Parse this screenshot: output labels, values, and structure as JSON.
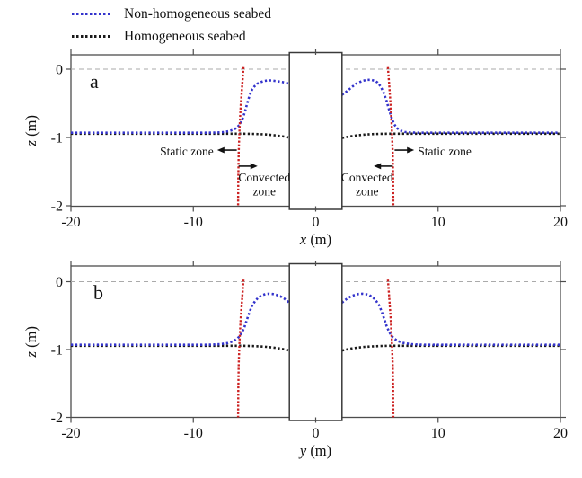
{
  "legend": {
    "items": [
      {
        "label": "Non-homogeneous seabed",
        "color": "#3333cc",
        "style": "dotted"
      },
      {
        "label": "Homogeneous seabed",
        "color": "#1a1a1a",
        "style": "dotted"
      }
    ]
  },
  "colors": {
    "non_homogeneous": "#3333cc",
    "homogeneous": "#1a1a1a",
    "slip_surface": "#cc2222",
    "zero_gridline": "#aaaaaa",
    "frame": "#4d4d4d",
    "text": "#111111"
  },
  "chart_data": [
    {
      "panel": "a",
      "type": "line",
      "xlabel": "x (m)",
      "ylabel": "z (m)",
      "xlim": [
        -20,
        20
      ],
      "ylim": [
        -2,
        0.2
      ],
      "xticks": [
        -20,
        -10,
        0,
        10,
        20
      ],
      "yticks": [
        0,
        -1,
        -2
      ],
      "grid": false,
      "zero_dashed_line": 0,
      "pile": {
        "x_range": [
          -2.15,
          2.15
        ]
      },
      "series": [
        {
          "id": "homogeneous-seabed-curve",
          "name": "Homogeneous seabed",
          "color": "#1a1a1a",
          "segments": [
            [
              [
                -20,
                -0.945
              ],
              [
                -16,
                -0.945
              ],
              [
                -12,
                -0.945
              ],
              [
                -9,
                -0.945
              ],
              [
                -7,
                -0.945
              ],
              [
                -6,
                -0.945
              ],
              [
                -5.2,
                -0.947
              ],
              [
                -4.6,
                -0.951
              ],
              [
                -4.0,
                -0.957
              ],
              [
                -3.4,
                -0.967
              ],
              [
                -2.9,
                -0.978
              ],
              [
                -2.5,
                -0.99
              ],
              [
                -2.15,
                -1.002
              ]
            ],
            [
              [
                2.15,
                -1.008
              ],
              [
                2.5,
                -0.995
              ],
              [
                2.9,
                -0.982
              ],
              [
                3.4,
                -0.969
              ],
              [
                4.0,
                -0.958
              ],
              [
                4.6,
                -0.951
              ],
              [
                5.2,
                -0.947
              ],
              [
                6,
                -0.945
              ],
              [
                7,
                -0.945
              ],
              [
                9,
                -0.945
              ],
              [
                12,
                -0.945
              ],
              [
                16,
                -0.945
              ],
              [
                20,
                -0.945
              ]
            ]
          ]
        },
        {
          "id": "non-homogeneous-seabed-curve",
          "name": "Non-homogeneous seabed",
          "color": "#3333cc",
          "segments": [
            [
              [
                -20,
                -0.93
              ],
              [
                -18,
                -0.93
              ],
              [
                -16,
                -0.93
              ],
              [
                -14,
                -0.93
              ],
              [
                -12,
                -0.93
              ],
              [
                -10,
                -0.93
              ],
              [
                -9,
                -0.93
              ],
              [
                -8.2,
                -0.928
              ],
              [
                -7.6,
                -0.922
              ],
              [
                -7.1,
                -0.908
              ],
              [
                -6.7,
                -0.885
              ],
              [
                -6.45,
                -0.858
              ],
              [
                -6.25,
                -0.82
              ],
              [
                -6.08,
                -0.77
              ],
              [
                -5.92,
                -0.7
              ],
              [
                -5.75,
                -0.6
              ],
              [
                -5.58,
                -0.49
              ],
              [
                -5.4,
                -0.385
              ],
              [
                -5.2,
                -0.3
              ],
              [
                -5.0,
                -0.25
              ],
              [
                -4.75,
                -0.21
              ],
              [
                -4.5,
                -0.19
              ],
              [
                -4.2,
                -0.172
              ],
              [
                -3.9,
                -0.165
              ],
              [
                -3.6,
                -0.165
              ],
              [
                -3.3,
                -0.172
              ],
              [
                -3.0,
                -0.18
              ],
              [
                -2.7,
                -0.19
              ],
              [
                -2.4,
                -0.2
              ],
              [
                -2.15,
                -0.215
              ]
            ],
            [
              [
                2.15,
                -0.375
              ],
              [
                2.4,
                -0.345
              ],
              [
                2.7,
                -0.3
              ],
              [
                3.0,
                -0.255
              ],
              [
                3.3,
                -0.215
              ],
              [
                3.6,
                -0.188
              ],
              [
                3.9,
                -0.168
              ],
              [
                4.2,
                -0.157
              ],
              [
                4.5,
                -0.155
              ],
              [
                4.8,
                -0.168
              ],
              [
                5.05,
                -0.195
              ],
              [
                5.3,
                -0.25
              ],
              [
                5.55,
                -0.34
              ],
              [
                5.78,
                -0.46
              ],
              [
                5.98,
                -0.585
              ],
              [
                6.18,
                -0.7
              ],
              [
                6.38,
                -0.795
              ],
              [
                6.6,
                -0.857
              ],
              [
                6.9,
                -0.898
              ],
              [
                7.3,
                -0.92
              ],
              [
                7.8,
                -0.928
              ],
              [
                8.5,
                -0.93
              ],
              [
                10,
                -0.93
              ],
              [
                12,
                -0.93
              ],
              [
                14,
                -0.93
              ],
              [
                16,
                -0.93
              ],
              [
                18,
                -0.93
              ],
              [
                20,
                -0.93
              ]
            ]
          ]
        }
      ],
      "slip_surfaces": {
        "color": "#cc2222",
        "segments": [
          [
            [
              -5.9,
              0.03
            ],
            [
              -6.0,
              -0.22
            ],
            [
              -6.12,
              -0.52
            ],
            [
              -6.22,
              -0.85
            ],
            [
              -6.29,
              -1.2
            ],
            [
              -6.33,
              -1.6
            ],
            [
              -6.34,
              -2.0
            ]
          ],
          [
            [
              5.9,
              0.03
            ],
            [
              6.0,
              -0.22
            ],
            [
              6.12,
              -0.52
            ],
            [
              6.22,
              -0.85
            ],
            [
              6.29,
              -1.2
            ],
            [
              6.33,
              -1.6
            ],
            [
              6.34,
              -2.0
            ]
          ]
        ]
      },
      "annotations": [
        {
          "id": "static-zone-left",
          "lines": [
            "Static zone"
          ],
          "anchor": "end",
          "tx": -8.35,
          "tz": -1.26,
          "ax1": -6.45,
          "ax2": -8.05,
          "az": -1.185
        },
        {
          "id": "static-zone-right",
          "lines": [
            "Static zone"
          ],
          "anchor": "start",
          "tx": 8.35,
          "tz": -1.26,
          "ax1": 6.45,
          "ax2": 8.05,
          "az": -1.185
        },
        {
          "id": "convected-zone-left",
          "lines": [
            "Convected",
            "zone"
          ],
          "anchor": "middle",
          "tx": -4.2,
          "tz": -1.645,
          "ax1": -6.3,
          "ax2": -4.75,
          "az": -1.42
        },
        {
          "id": "convected-zone-right",
          "lines": [
            "Convected",
            "zone"
          ],
          "anchor": "middle",
          "tx": 4.2,
          "tz": -1.645,
          "ax1": 6.3,
          "ax2": 4.75,
          "az": -1.42
        }
      ]
    },
    {
      "panel": "b",
      "type": "line",
      "xlabel": "y (m)",
      "ylabel": "z (m)",
      "xlim": [
        -20,
        20
      ],
      "ylim": [
        -2,
        0.2
      ],
      "xticks": [
        -20,
        -10,
        0,
        10,
        20
      ],
      "yticks": [
        0,
        -1,
        -2
      ],
      "grid": false,
      "zero_dashed_line": 0,
      "pile": {
        "x_range": [
          -2.15,
          2.15
        ]
      },
      "series": [
        {
          "id": "homogeneous-seabed-curve",
          "name": "Homogeneous seabed",
          "color": "#1a1a1a",
          "segments": [
            [
              [
                -20,
                -0.945
              ],
              [
                -16,
                -0.945
              ],
              [
                -12,
                -0.945
              ],
              [
                -9,
                -0.945
              ],
              [
                -7,
                -0.945
              ],
              [
                -6,
                -0.945
              ],
              [
                -5.2,
                -0.948
              ],
              [
                -4.6,
                -0.953
              ],
              [
                -4.0,
                -0.96
              ],
              [
                -3.4,
                -0.972
              ],
              [
                -2.9,
                -0.985
              ],
              [
                -2.5,
                -1.0
              ],
              [
                -2.15,
                -1.015
              ]
            ],
            [
              [
                2.15,
                -1.015
              ],
              [
                2.5,
                -1.0
              ],
              [
                2.9,
                -0.985
              ],
              [
                3.4,
                -0.972
              ],
              [
                4.0,
                -0.96
              ],
              [
                4.6,
                -0.953
              ],
              [
                5.2,
                -0.948
              ],
              [
                6,
                -0.945
              ],
              [
                7,
                -0.945
              ],
              [
                9,
                -0.945
              ],
              [
                12,
                -0.945
              ],
              [
                16,
                -0.945
              ],
              [
                20,
                -0.945
              ]
            ]
          ]
        },
        {
          "id": "non-homogeneous-seabed-curve",
          "name": "Non-homogeneous seabed",
          "color": "#3333cc",
          "segments": [
            [
              [
                -20,
                -0.93
              ],
              [
                -16,
                -0.93
              ],
              [
                -12,
                -0.93
              ],
              [
                -10,
                -0.93
              ],
              [
                -8.6,
                -0.928
              ],
              [
                -7.8,
                -0.92
              ],
              [
                -7.2,
                -0.905
              ],
              [
                -6.75,
                -0.878
              ],
              [
                -6.45,
                -0.845
              ],
              [
                -6.2,
                -0.8
              ],
              [
                -6.0,
                -0.74
              ],
              [
                -5.8,
                -0.655
              ],
              [
                -5.6,
                -0.55
              ],
              [
                -5.4,
                -0.445
              ],
              [
                -5.2,
                -0.355
              ],
              [
                -4.95,
                -0.285
              ],
              [
                -4.7,
                -0.235
              ],
              [
                -4.4,
                -0.2
              ],
              [
                -4.1,
                -0.183
              ],
              [
                -3.8,
                -0.178
              ],
              [
                -3.5,
                -0.182
              ],
              [
                -3.2,
                -0.195
              ],
              [
                -2.9,
                -0.215
              ],
              [
                -2.6,
                -0.245
              ],
              [
                -2.35,
                -0.28
              ],
              [
                -2.15,
                -0.31
              ]
            ],
            [
              [
                2.15,
                -0.31
              ],
              [
                2.35,
                -0.28
              ],
              [
                2.6,
                -0.245
              ],
              [
                2.9,
                -0.215
              ],
              [
                3.2,
                -0.195
              ],
              [
                3.5,
                -0.182
              ],
              [
                3.8,
                -0.178
              ],
              [
                4.1,
                -0.183
              ],
              [
                4.4,
                -0.2
              ],
              [
                4.7,
                -0.235
              ],
              [
                4.95,
                -0.285
              ],
              [
                5.2,
                -0.355
              ],
              [
                5.4,
                -0.445
              ],
              [
                5.6,
                -0.55
              ],
              [
                5.8,
                -0.655
              ],
              [
                6.0,
                -0.74
              ],
              [
                6.2,
                -0.8
              ],
              [
                6.45,
                -0.845
              ],
              [
                6.75,
                -0.878
              ],
              [
                7.2,
                -0.905
              ],
              [
                7.8,
                -0.92
              ],
              [
                8.6,
                -0.928
              ],
              [
                10,
                -0.93
              ],
              [
                12,
                -0.93
              ],
              [
                16,
                -0.93
              ],
              [
                20,
                -0.93
              ]
            ]
          ]
        }
      ],
      "slip_surfaces": {
        "color": "#cc2222",
        "segments": [
          [
            [
              -5.9,
              0.03
            ],
            [
              -6.0,
              -0.22
            ],
            [
              -6.12,
              -0.52
            ],
            [
              -6.22,
              -0.85
            ],
            [
              -6.29,
              -1.2
            ],
            [
              -6.33,
              -1.6
            ],
            [
              -6.34,
              -2.0
            ]
          ],
          [
            [
              5.9,
              0.03
            ],
            [
              6.0,
              -0.22
            ],
            [
              6.12,
              -0.52
            ],
            [
              6.22,
              -0.85
            ],
            [
              6.29,
              -1.2
            ],
            [
              6.33,
              -1.6
            ],
            [
              6.34,
              -2.0
            ]
          ]
        ]
      },
      "annotations": []
    }
  ]
}
